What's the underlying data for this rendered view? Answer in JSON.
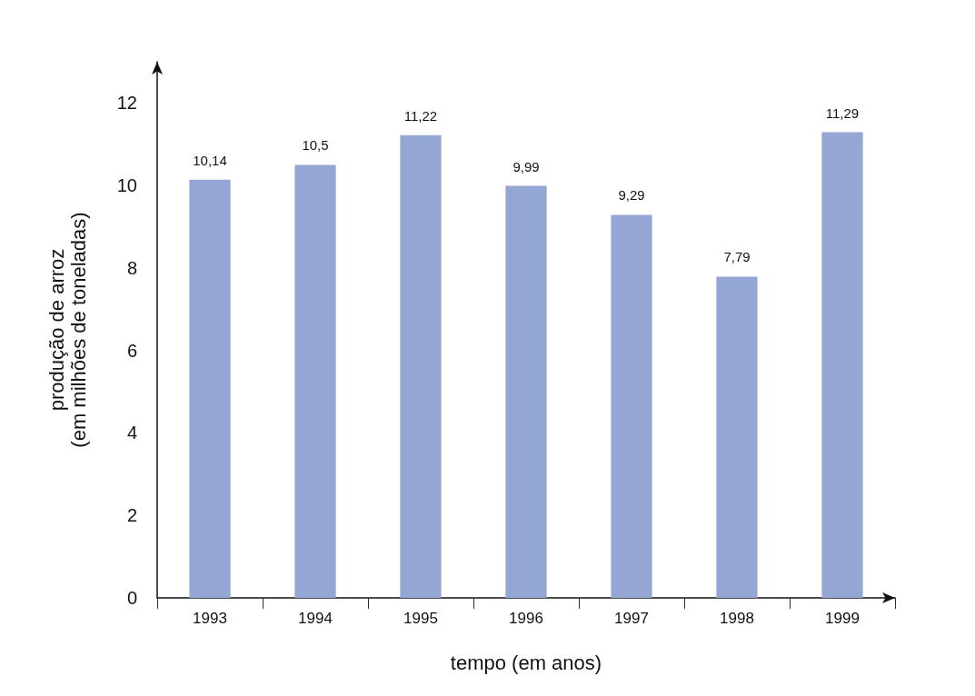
{
  "chart_data": {
    "type": "bar",
    "xlabel": "tempo (em anos)",
    "ylabel": "produção de arroz\n(em milhões de toneladas)",
    "categories": [
      "1993",
      "1994",
      "1995",
      "1996",
      "1997",
      "1998",
      "1999"
    ],
    "values": [
      10.14,
      10.5,
      11.22,
      9.99,
      9.29,
      7.79,
      11.29
    ],
    "value_labels": [
      "10,14",
      "10,5",
      "11,22",
      "9,99",
      "9,29",
      "7,79",
      "11,29"
    ],
    "color": "#94a6d4",
    "ylim": [
      0,
      13
    ],
    "yticks": [
      0,
      2,
      4,
      6,
      8,
      10,
      12
    ]
  }
}
